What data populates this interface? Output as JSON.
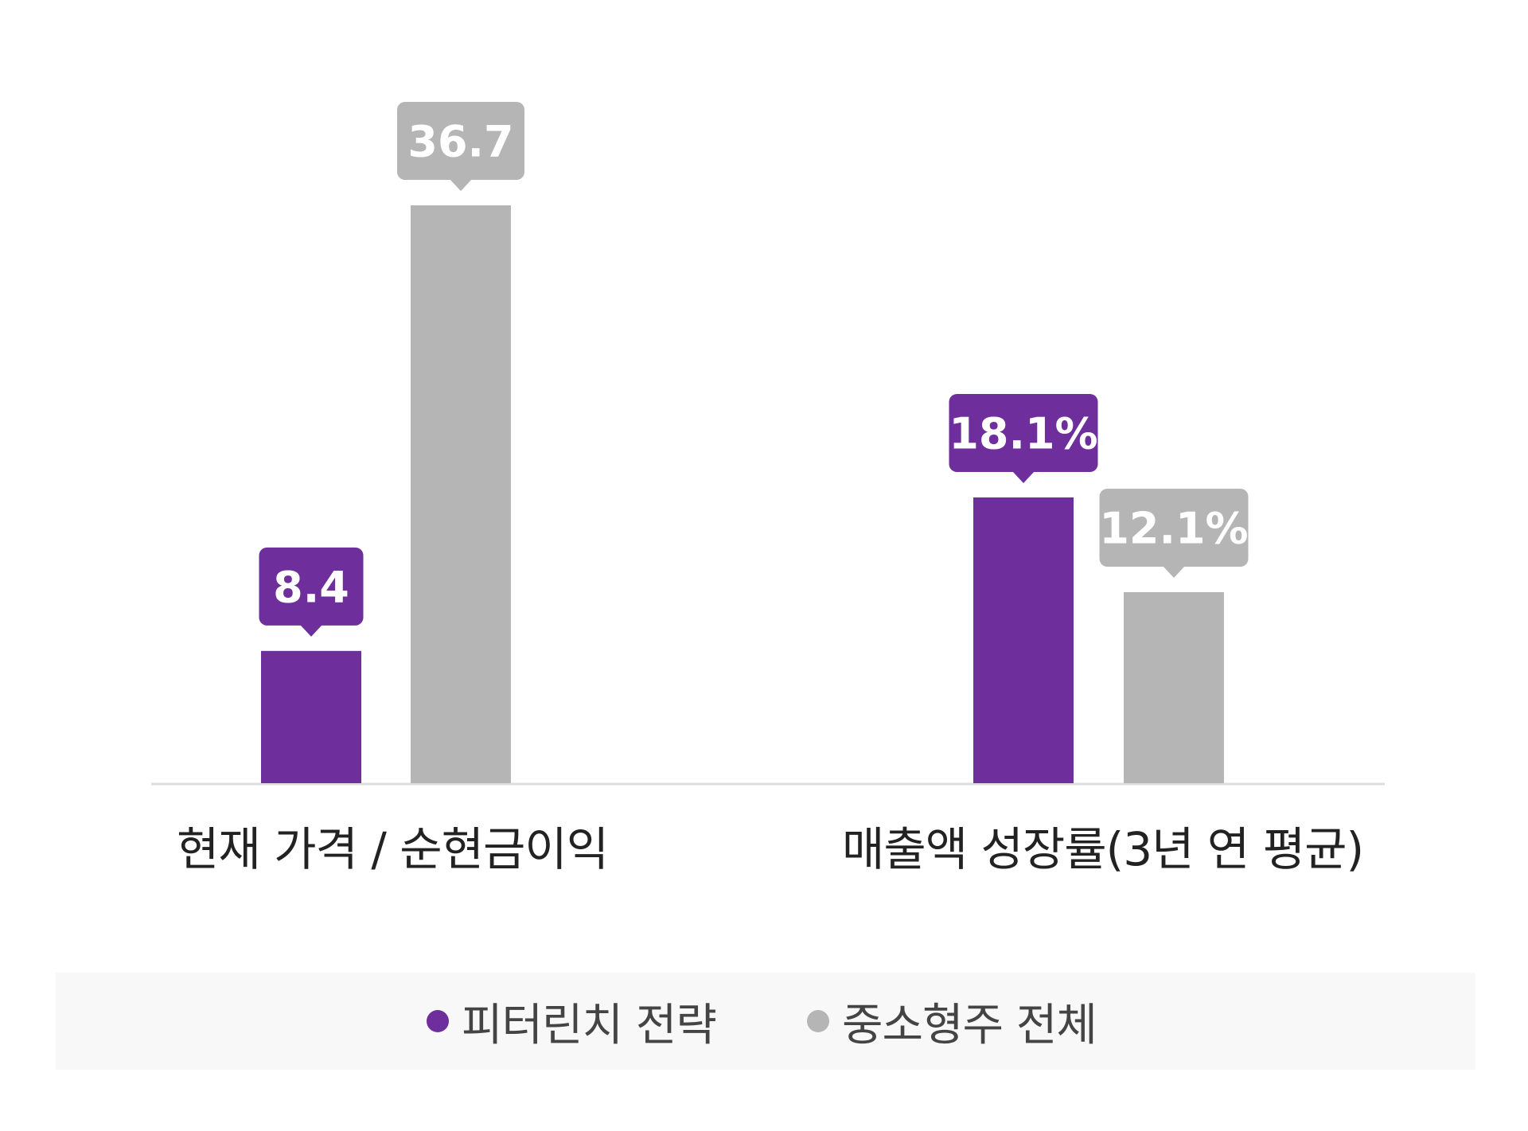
{
  "chart_data": {
    "type": "bar",
    "categories": [
      "현재 가격 / 순현금이익",
      "매출액 성장률(3년 연 평균)"
    ],
    "series": [
      {
        "name": "피터린치 전략",
        "color": "#6e2e9c",
        "values": [
          8.4,
          18.1
        ],
        "labels": [
          "8.4",
          "18.1%"
        ]
      },
      {
        "name": "중소형주 전체",
        "color": "#b5b5b5",
        "values": [
          36.7,
          12.1
        ],
        "labels": [
          "36.7",
          "12.1%"
        ]
      }
    ],
    "grid": false,
    "legend_position": "bottom"
  }
}
